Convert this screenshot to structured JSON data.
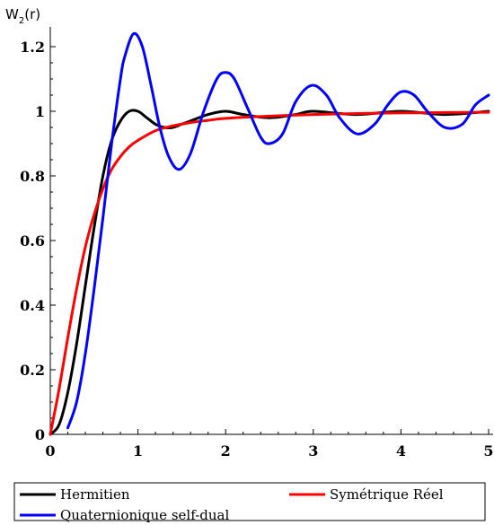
{
  "chart_data": {
    "type": "line",
    "title": "",
    "xlabel": "",
    "ylabel": "W",
    "ylabel_sub": "2",
    "ylabel_suffix": "(r)",
    "xlim": [
      0,
      5
    ],
    "ylim": [
      0,
      1.25
    ],
    "x_ticks": [
      "0",
      "1",
      "2",
      "3",
      "4",
      "5"
    ],
    "y_ticks": [
      "0",
      "0.2",
      "0.4",
      "0.6",
      "0.8",
      "1",
      "1.2"
    ],
    "grid": false,
    "legend_placement": "bottom",
    "series": [
      {
        "name": "Hermitien",
        "color": "#000000",
        "x": [
          0,
          0.1,
          0.2,
          0.3,
          0.4,
          0.5,
          0.6,
          0.7,
          0.8,
          0.9,
          1.0,
          1.1,
          1.2,
          1.3,
          1.4,
          1.5,
          1.6,
          1.8,
          2.0,
          2.2,
          2.5,
          2.8,
          3.0,
          3.5,
          4.0,
          4.5,
          5.0
        ],
        "y": [
          0,
          0.03,
          0.13,
          0.28,
          0.46,
          0.64,
          0.8,
          0.91,
          0.97,
          1.0,
          1.0,
          0.98,
          0.96,
          0.95,
          0.95,
          0.96,
          0.97,
          0.99,
          1.0,
          0.99,
          0.98,
          0.99,
          1.0,
          0.99,
          1.0,
          0.99,
          1.0
        ]
      },
      {
        "name": "Symétrique Réel",
        "color": "#ff0000",
        "x": [
          0,
          0.1,
          0.2,
          0.3,
          0.4,
          0.5,
          0.6,
          0.7,
          0.8,
          0.9,
          1.0,
          1.2,
          1.4,
          1.6,
          1.8,
          2.0,
          2.5,
          3.0,
          3.5,
          4.0,
          4.5,
          5.0
        ],
        "y": [
          0,
          0.14,
          0.3,
          0.45,
          0.58,
          0.68,
          0.76,
          0.82,
          0.86,
          0.89,
          0.91,
          0.94,
          0.955,
          0.965,
          0.972,
          0.978,
          0.985,
          0.99,
          0.993,
          0.995,
          0.996,
          0.997
        ]
      },
      {
        "name": "Quaternionique self-dual",
        "color": "#0000ff",
        "x": [
          0.2,
          0.3,
          0.4,
          0.5,
          0.6,
          0.7,
          0.8,
          0.85,
          0.95,
          1.05,
          1.15,
          1.25,
          1.35,
          1.47,
          1.6,
          1.75,
          1.9,
          2.0,
          2.1,
          2.25,
          2.4,
          2.5,
          2.65,
          2.8,
          2.98,
          3.15,
          3.3,
          3.5,
          3.7,
          3.85,
          4.0,
          4.15,
          4.3,
          4.5,
          4.7,
          4.85,
          5.0
        ],
        "y": [
          0.02,
          0.1,
          0.25,
          0.45,
          0.67,
          0.9,
          1.1,
          1.17,
          1.24,
          1.2,
          1.08,
          0.95,
          0.86,
          0.82,
          0.87,
          1.0,
          1.1,
          1.12,
          1.1,
          1.01,
          0.92,
          0.9,
          0.93,
          1.03,
          1.08,
          1.05,
          0.98,
          0.93,
          0.96,
          1.02,
          1.06,
          1.05,
          1.0,
          0.95,
          0.96,
          1.02,
          1.05
        ]
      }
    ]
  }
}
